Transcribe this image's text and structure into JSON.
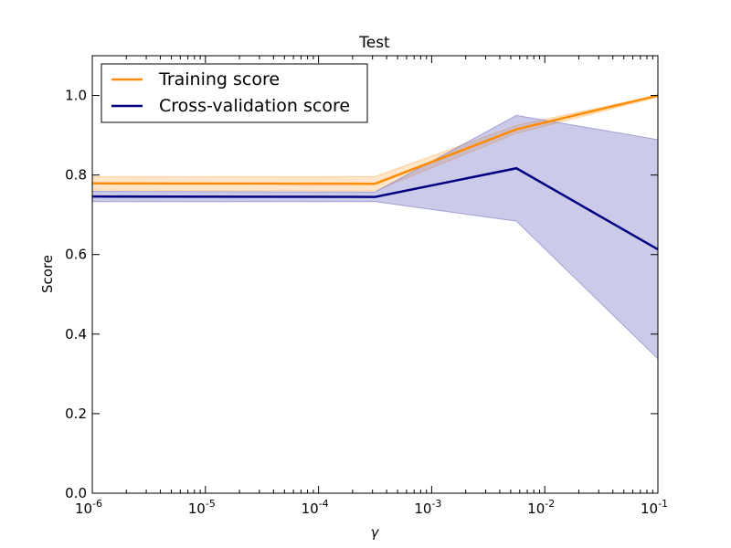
{
  "chart_data": {
    "type": "line",
    "title": "Test",
    "xlabel": "γ",
    "ylabel": "Score",
    "xscale": "log",
    "xlim": [
      1e-06,
      0.1
    ],
    "ylim": [
      0.0,
      1.1
    ],
    "grid": false,
    "legend_position": "top-left",
    "xticks": [
      {
        "value": 1e-06,
        "base": "10",
        "exp": "-6"
      },
      {
        "value": 1e-05,
        "base": "10",
        "exp": "-5"
      },
      {
        "value": 0.0001,
        "base": "10",
        "exp": "-4"
      },
      {
        "value": 0.001,
        "base": "10",
        "exp": "-3"
      },
      {
        "value": 0.01,
        "base": "10",
        "exp": "-2"
      },
      {
        "value": 0.1,
        "base": "10",
        "exp": "-1"
      }
    ],
    "yticks": [
      {
        "value": 0.0,
        "label": "0.0"
      },
      {
        "value": 0.2,
        "label": "0.2"
      },
      {
        "value": 0.4,
        "label": "0.4"
      },
      {
        "value": 0.6,
        "label": "0.6"
      },
      {
        "value": 0.8,
        "label": "0.8"
      },
      {
        "value": 1.0,
        "label": "1.0"
      }
    ],
    "x": [
      1e-06,
      0.000316,
      0.00562,
      0.1
    ],
    "series": [
      {
        "name": "Training score",
        "color": "#ff8c00",
        "band_color": "#ffb866",
        "values": [
          0.779,
          0.778,
          0.915,
          1.0
        ],
        "lower": [
          0.762,
          0.76,
          0.905,
          0.996
        ],
        "upper": [
          0.796,
          0.796,
          0.925,
          1.0
        ]
      },
      {
        "name": "Cross-validation score",
        "color": "#000080",
        "band_color": "#7777c4",
        "values": [
          0.746,
          0.745,
          0.817,
          0.613
        ],
        "lower": [
          0.733,
          0.733,
          0.684,
          0.338
        ],
        "upper": [
          0.759,
          0.757,
          0.95,
          0.889
        ]
      }
    ]
  }
}
